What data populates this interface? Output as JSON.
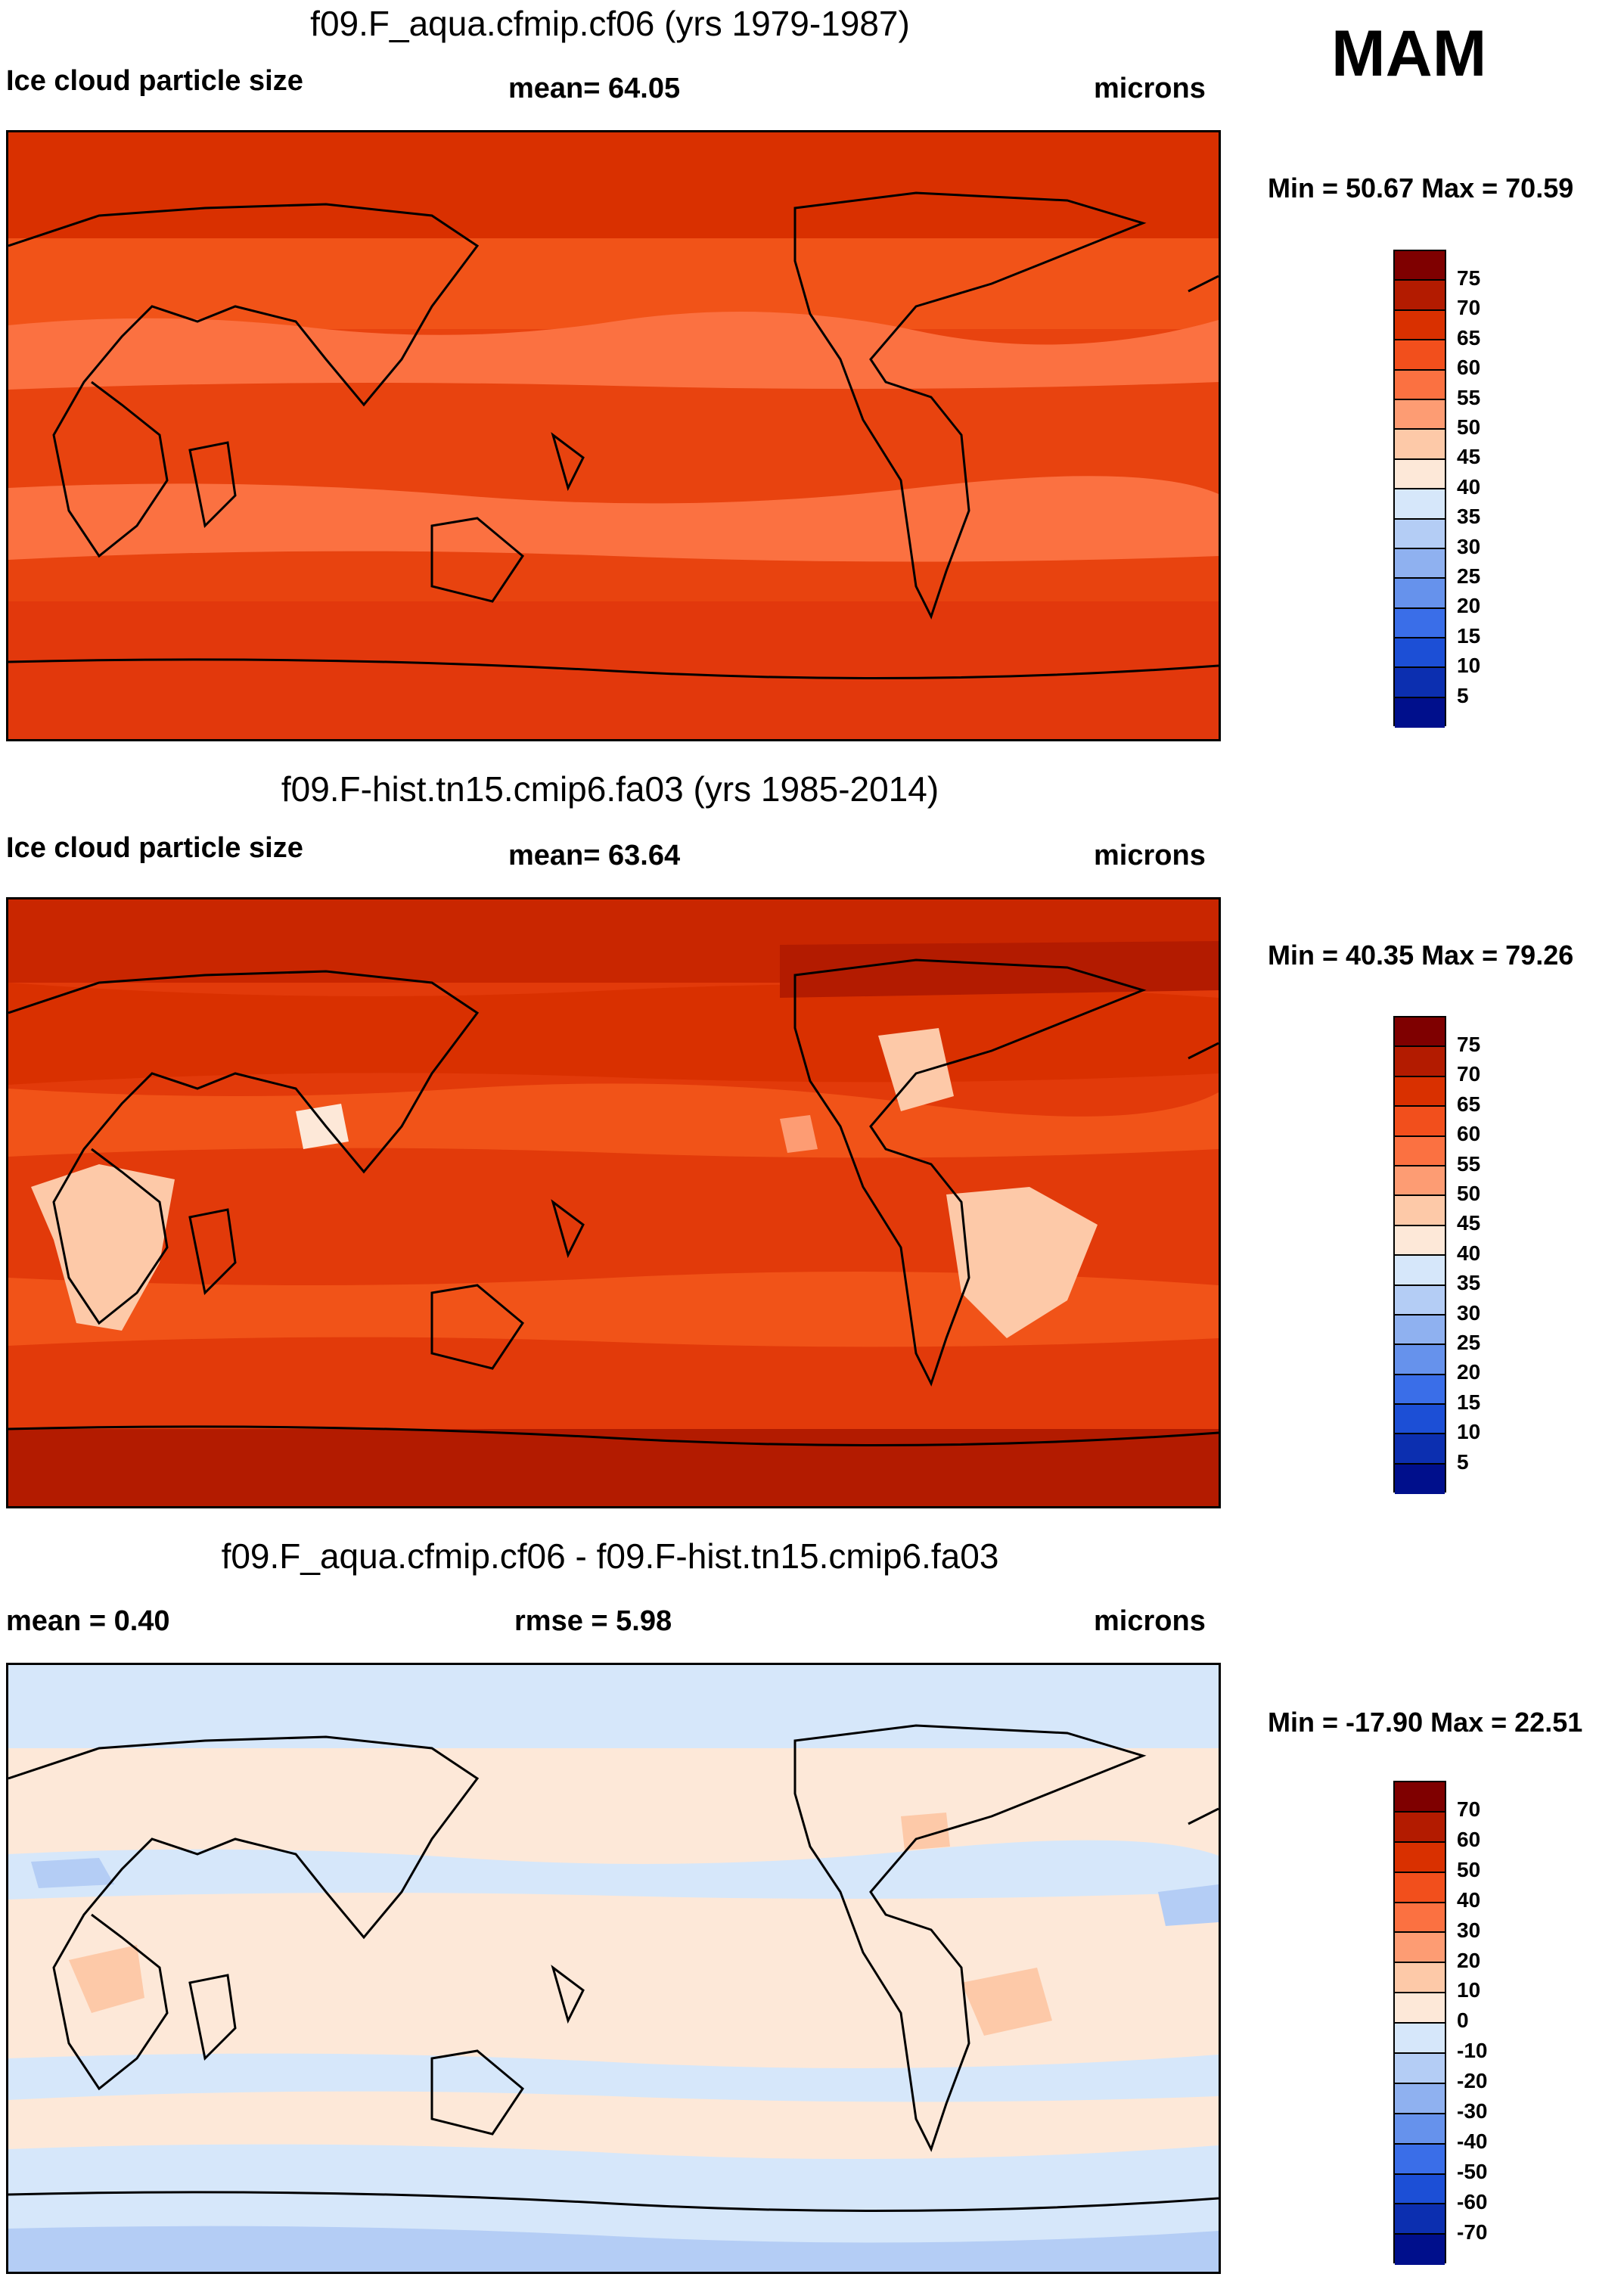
{
  "season": "MAM",
  "panels": [
    {
      "title": "f09.F_aqua.cfmip.cf06 (yrs 1979-1987)",
      "left_label": "Ice cloud particle size",
      "center_label": "mean=  64.05",
      "right_label": "microns",
      "minmax": "Min =  50.67 Max =  70.59",
      "colorbar_ticks": [
        "75",
        "70",
        "65",
        "60",
        "55",
        "50",
        "45",
        "40",
        "35",
        "30",
        "25",
        "20",
        "15",
        "10",
        "5"
      ]
    },
    {
      "title": "f09.F-hist.tn15.cmip6.fa03 (yrs 1985-2014)",
      "left_label": "Ice cloud particle size",
      "center_label": "mean=  63.64",
      "right_label": "microns",
      "minmax": "Min =  40.35 Max =  79.26",
      "colorbar_ticks": [
        "75",
        "70",
        "65",
        "60",
        "55",
        "50",
        "45",
        "40",
        "35",
        "30",
        "25",
        "20",
        "15",
        "10",
        "5"
      ]
    },
    {
      "title": "f09.F_aqua.cfmip.cf06 - f09.F-hist.tn15.cmip6.fa03",
      "left_label": "mean =    0.40",
      "center_label": "rmse =    5.98",
      "right_label": "microns",
      "minmax": "Min = -17.90 Max =  22.51",
      "colorbar_ticks": [
        "70",
        "60",
        "50",
        "40",
        "30",
        "20",
        "10",
        "0",
        "-10",
        "-20",
        "-30",
        "-40",
        "-50",
        "-60",
        "-70"
      ]
    }
  ],
  "colors": {
    "scale": [
      "#7f0000",
      "#b31b00",
      "#d93000",
      "#f24f1c",
      "#fb7141",
      "#fd9c73",
      "#fdc9a8",
      "#fde8d8",
      "#d6e7fa",
      "#b4cdf5",
      "#8fb1f0",
      "#6692ec",
      "#3a6ee8",
      "#1c4fd6",
      "#0c2fb0",
      "#000f8c"
    ],
    "ocean_mid": "#f15318",
    "coast": "#000000"
  }
}
